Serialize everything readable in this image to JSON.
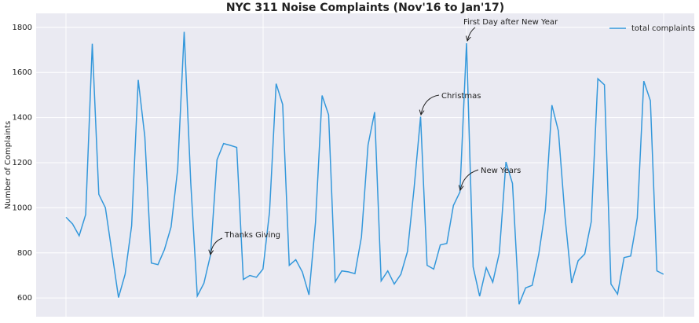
{
  "chart_data": {
    "type": "line",
    "title": "NYC 311 Noise Complaints (Nov'16 to Jan'17)",
    "y_label": "Number of Complaints",
    "series": [
      {
        "name": "total complaints",
        "color": "#3498db",
        "values": [
          958,
          928,
          876,
          970,
          1727,
          1060,
          1000,
          800,
          602,
          705,
          920,
          1567,
          1315,
          755,
          748,
          815,
          915,
          1170,
          1780,
          1110,
          609,
          665,
          790,
          1213,
          1285,
          1277,
          1268,
          682,
          700,
          692,
          728,
          982,
          1550,
          1458,
          745,
          770,
          715,
          614,
          935,
          1498,
          1412,
          672,
          720,
          716,
          708,
          870,
          1278,
          1424,
          676,
          720,
          662,
          705,
          806,
          1082,
          1404,
          745,
          728,
          835,
          842,
          1010,
          1070,
          1730,
          738,
          608,
          734,
          670,
          800,
          1203,
          1108,
          572,
          645,
          656,
          795,
          990,
          1455,
          1340,
          960,
          667,
          765,
          795,
          938,
          1572,
          1545,
          662,
          617,
          779,
          786,
          955,
          1562,
          1475,
          720,
          705
        ]
      }
    ],
    "ylim": [
      517,
      1862
    ],
    "yticks": [
      600,
      800,
      1000,
      1200,
      1400,
      1600,
      1800
    ],
    "grid": true,
    "legend": "upper right",
    "annotations": [
      {
        "text": "Thanks Giving"
      },
      {
        "text": "Christmas"
      },
      {
        "text": "New Years"
      },
      {
        "text": "First Day after New Year"
      }
    ]
  }
}
